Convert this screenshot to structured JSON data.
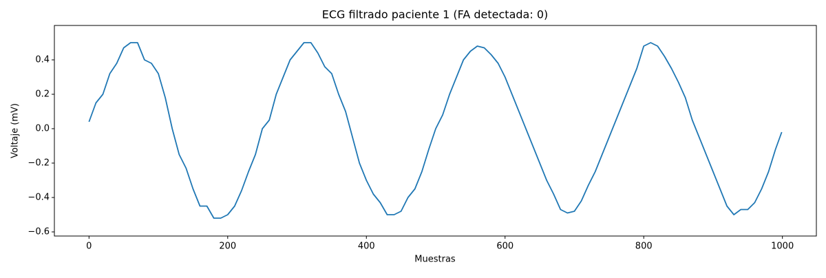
{
  "chart_data": {
    "type": "line",
    "title": "ECG filtrado paciente 1 (FA detectada: 0)",
    "x_label": "Muestras",
    "y_label": "Voltaje (mV)",
    "x": [
      0,
      10,
      20,
      30,
      40,
      50,
      60,
      70,
      80,
      90,
      100,
      110,
      120,
      130,
      140,
      150,
      160,
      170,
      180,
      190,
      200,
      210,
      220,
      230,
      240,
      250,
      260,
      270,
      280,
      290,
      300,
      310,
      320,
      330,
      340,
      350,
      360,
      370,
      380,
      390,
      400,
      410,
      420,
      430,
      440,
      450,
      460,
      470,
      480,
      490,
      500,
      510,
      520,
      530,
      540,
      550,
      560,
      570,
      580,
      590,
      600,
      610,
      620,
      630,
      640,
      650,
      660,
      670,
      680,
      690,
      700,
      710,
      720,
      730,
      740,
      750,
      760,
      770,
      780,
      790,
      800,
      810,
      820,
      830,
      840,
      850,
      860,
      870,
      880,
      890,
      900,
      910,
      920,
      930,
      940,
      950,
      960,
      970,
      980,
      990,
      999
    ],
    "series": [
      {
        "color": "#1f77b4",
        "values": [
          0.04,
          0.15,
          0.2,
          0.32,
          0.38,
          0.47,
          0.5,
          0.5,
          0.4,
          0.38,
          0.32,
          0.18,
          0.0,
          -0.15,
          -0.23,
          -0.35,
          -0.45,
          -0.45,
          -0.52,
          -0.52,
          -0.5,
          -0.45,
          -0.36,
          -0.25,
          -0.15,
          0.0,
          0.05,
          0.2,
          0.3,
          0.4,
          0.45,
          0.5,
          0.5,
          0.44,
          0.36,
          0.32,
          0.2,
          0.1,
          -0.05,
          -0.2,
          -0.3,
          -0.38,
          -0.43,
          -0.5,
          -0.5,
          -0.48,
          -0.4,
          -0.35,
          -0.25,
          -0.12,
          0.0,
          0.08,
          0.2,
          0.3,
          0.4,
          0.45,
          0.48,
          0.47,
          0.43,
          0.38,
          0.3,
          0.2,
          0.1,
          0.0,
          -0.1,
          -0.2,
          -0.3,
          -0.38,
          -0.47,
          -0.49,
          -0.48,
          -0.42,
          -0.33,
          -0.25,
          -0.15,
          -0.05,
          0.05,
          0.15,
          0.25,
          0.35,
          0.48,
          0.5,
          0.48,
          0.42,
          0.35,
          0.27,
          0.18,
          0.05,
          -0.05,
          -0.15,
          -0.25,
          -0.35,
          -0.45,
          -0.5,
          -0.47,
          -0.47,
          -0.43,
          -0.35,
          -0.25,
          -0.12,
          -0.02
        ]
      }
    ],
    "xlim": [
      -49.95,
      1048.95
    ],
    "ylim": [
      -0.624,
      0.6
    ],
    "xticks": [
      0,
      200,
      400,
      600,
      800,
      1000
    ],
    "yticks": [
      {
        "value": -0.6,
        "label": "−0.6"
      },
      {
        "value": -0.4,
        "label": "−0.4"
      },
      {
        "value": -0.2,
        "label": "−0.2"
      },
      {
        "value": 0,
        "label": "0.0"
      },
      0.2,
      0.4
    ]
  }
}
